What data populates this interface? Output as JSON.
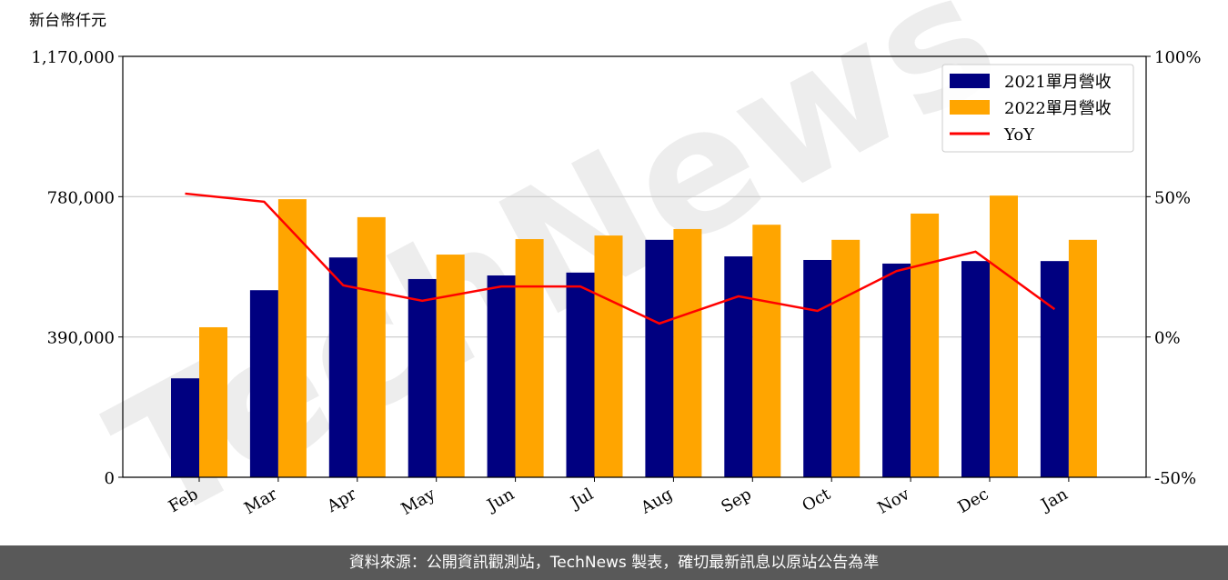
{
  "chart_data": {
    "type": "bar",
    "y_label": "新台幣仟元",
    "watermark": "TechNews",
    "categories": [
      "Feb",
      "Mar",
      "Apr",
      "May",
      "Jun",
      "Jul",
      "Aug",
      "Sep",
      "Oct",
      "Nov",
      "Dec",
      "Jan"
    ],
    "series": [
      {
        "name": "2021單月營收",
        "color": "#000080",
        "type": "bar",
        "values": [
          275000,
          520000,
          611000,
          551000,
          561000,
          569000,
          660000,
          614000,
          604000,
          594000,
          601000,
          601000
        ]
      },
      {
        "name": "2022單月營收",
        "color": "#ffa500",
        "type": "bar",
        "values": [
          417000,
          773000,
          723000,
          619000,
          662000,
          672000,
          690000,
          702000,
          660000,
          733000,
          783000,
          660000
        ]
      },
      {
        "name": "YoY",
        "color": "#ff0000",
        "type": "line",
        "axis": "y2",
        "values": [
          51.1,
          48.2,
          18.4,
          12.9,
          18.0,
          18.0,
          4.8,
          14.5,
          9.3,
          23.5,
          30.4,
          9.9
        ]
      }
    ],
    "ylim": [
      0,
      1170000
    ],
    "yticks": [
      0,
      {
        "value": 390000,
        "label": "390,000"
      },
      {
        "value": 780000,
        "label": "780,000"
      },
      {
        "value": 1170000,
        "label": "1,170,000"
      }
    ],
    "y2lim": [
      -50,
      100
    ],
    "y2ticks": [
      {
        "value": -50,
        "label": "-50%"
      },
      {
        "value": 0,
        "label": "0%"
      },
      {
        "value": 50,
        "label": "50%"
      },
      {
        "value": 100,
        "label": "100%"
      }
    ],
    "grid": true,
    "legend": "upper right",
    "source": "資料來源：公開資訊觀測站，TechNews 製表，確切最新訊息以原站公告為準"
  }
}
